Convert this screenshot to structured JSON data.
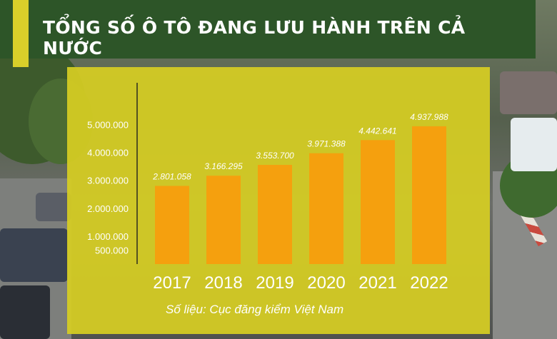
{
  "header": {
    "title": "TỔNG SỐ Ô TÔ ĐANG LƯU HÀNH TRÊN CẢ NƯỚC"
  },
  "source": "Số liệu: Cục đăng kiểm Việt Nam",
  "colors": {
    "header_bg": "#2d5528",
    "accent_stripe": "#d9cf2a",
    "panel_bg": "#d6ce22",
    "bar": "#f5a00e",
    "text": "#ffffff"
  },
  "chart_data": {
    "type": "bar",
    "title": "TỔNG SỐ Ô TÔ ĐANG LƯU HÀNH TRÊN CẢ NƯỚC",
    "categories": [
      "2017",
      "2018",
      "2019",
      "2020",
      "2021",
      "2022"
    ],
    "values": [
      2801058,
      3166295,
      3553700,
      3971388,
      4442641,
      4937988
    ],
    "value_labels": [
      "2.801.058",
      "3.166.295",
      "3.553.700",
      "3.971.388",
      "4.442.641",
      "4.937.988"
    ],
    "yticks": [
      500000,
      1000000,
      2000000,
      3000000,
      4000000,
      5000000
    ],
    "ytick_labels": [
      "500.000",
      "1.000.000",
      "2.000.000",
      "3.000.000",
      "4.000.000",
      "5.000.000"
    ],
    "xlabel": "",
    "ylabel": "",
    "ylim": [
      0,
      5000000
    ],
    "grid": false,
    "legend": "none"
  }
}
